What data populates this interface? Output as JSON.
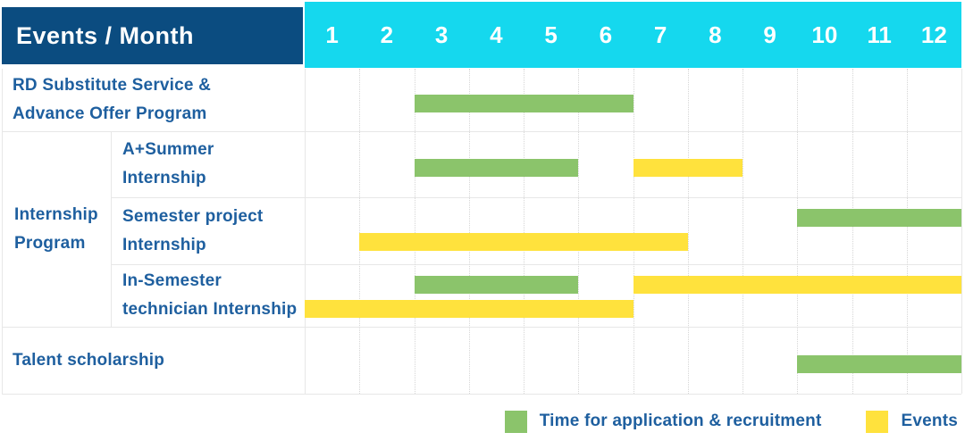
{
  "header": {
    "label": "Events / Month",
    "months": [
      "1",
      "2",
      "3",
      "4",
      "5",
      "6",
      "7",
      "8",
      "9",
      "10",
      "11",
      "12"
    ]
  },
  "legend": {
    "items": [
      {
        "key": "application",
        "label": "Time for application & recruitment",
        "color": "#8bc46b"
      },
      {
        "key": "event",
        "label": "Events",
        "color": "#ffe23d"
      }
    ]
  },
  "colors": {
    "header_bg": "#0b4c80",
    "months_bg": "#15d8ee",
    "label_text": "#1e5f9f",
    "application_green": "#8bc46b",
    "event_yellow": "#ffe23d",
    "grid_solid": "#e7e7e7",
    "grid_dotted": "#d6d6d6"
  },
  "chart_data": {
    "type": "bar",
    "subtype": "gantt-timeline",
    "title": "Events / Month",
    "x_axis": {
      "label": "Month",
      "range": [
        1,
        12
      ],
      "ticks": [
        "1",
        "2",
        "3",
        "4",
        "5",
        "6",
        "7",
        "8",
        "9",
        "10",
        "11",
        "12"
      ]
    },
    "legend_position": "bottom-right",
    "grid": "dotted-vertical-month-lines",
    "series_legend": [
      {
        "series": "application",
        "label": "Time for application & recruitment",
        "color": "#8bc46b"
      },
      {
        "series": "event",
        "label": "Events",
        "color": "#ffe23d"
      }
    ],
    "rows": [
      {
        "group": "",
        "label_lines": [
          "RD Substitute Service &",
          "Advance Offer Program"
        ],
        "bars": [
          {
            "series": "application",
            "start_month": 3,
            "end_month": 6,
            "track": 0
          }
        ]
      },
      {
        "group": "Internship Program",
        "label_lines": [
          "A+Summer",
          "Internship"
        ],
        "bars": [
          {
            "series": "application",
            "start_month": 3,
            "end_month": 5,
            "track": 0
          },
          {
            "series": "event",
            "start_month": 7,
            "end_month": 8,
            "track": 0
          }
        ]
      },
      {
        "group": "Internship Program",
        "label_lines": [
          "Semester project",
          "Internship"
        ],
        "bars": [
          {
            "series": "application",
            "start_month": 10,
            "end_month": 12,
            "track": 0
          },
          {
            "series": "event",
            "start_month": 2,
            "end_month": 7,
            "track": 1
          }
        ]
      },
      {
        "group": "Internship Program",
        "label_lines": [
          "In-Semester",
          "technician Internship"
        ],
        "bars": [
          {
            "series": "application",
            "start_month": 3,
            "end_month": 5,
            "track": 0
          },
          {
            "series": "event",
            "start_month": 7,
            "end_month": 12,
            "track": 0
          },
          {
            "series": "event",
            "start_month": 1,
            "end_month": 6,
            "track": 1
          }
        ]
      },
      {
        "group": "",
        "label_lines": [
          "Talent scholarship"
        ],
        "bars": [
          {
            "series": "application",
            "start_month": 10,
            "end_month": 12,
            "track": 0
          }
        ]
      }
    ],
    "group_label_lines": [
      "Internship",
      "Program"
    ]
  }
}
